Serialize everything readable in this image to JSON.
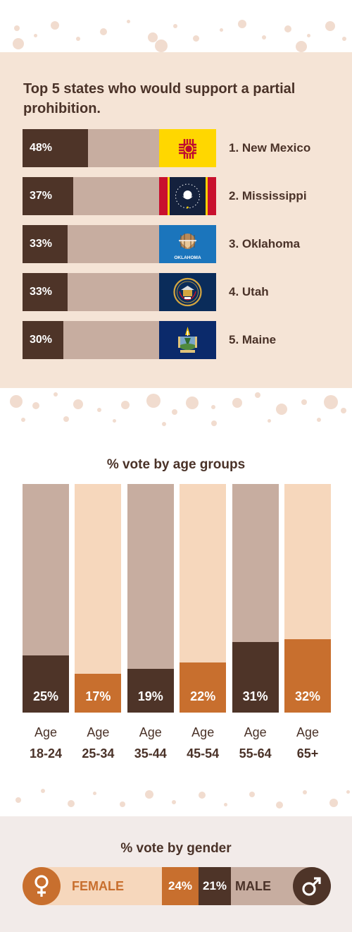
{
  "colors": {
    "dark_brown": "#4e3428",
    "light_brown": "#c7ada0",
    "orange": "#c86f2e",
    "peach": "#f6d7bc",
    "section_bg": "#f5e4d6",
    "gender_bg": "#f2ebe9",
    "text": "#4a3228"
  },
  "chart_data": [
    {
      "type": "bar",
      "orientation": "horizontal",
      "title": "Top 5 states who would support a partial prohibition.",
      "categories": [
        "1. New Mexico",
        "2. Mississippi",
        "3. Oklahoma",
        "4. Utah",
        "5. Maine"
      ],
      "values": [
        48,
        37,
        33,
        33,
        30
      ],
      "value_labels": [
        "48%",
        "37%",
        "33%",
        "33%",
        "30%"
      ],
      "flag_icons": [
        "new-mexico-flag-icon",
        "mississippi-flag-icon",
        "oklahoma-flag-icon",
        "utah-flag-icon",
        "maine-flag-icon"
      ],
      "flag_texts": [
        "",
        "",
        "OKLAHOMA",
        "",
        ""
      ],
      "xlim": [
        0,
        100
      ]
    },
    {
      "type": "bar",
      "orientation": "vertical",
      "title": "% vote by age groups",
      "category_prefix": "Age",
      "categories": [
        "18-24",
        "25-34",
        "35-44",
        "45-54",
        "55-64",
        "65+"
      ],
      "values": [
        25,
        17,
        19,
        22,
        31,
        32
      ],
      "value_labels": [
        "25%",
        "17%",
        "19%",
        "22%",
        "31%",
        "32%"
      ],
      "ylim": [
        0,
        100
      ]
    },
    {
      "type": "bar",
      "orientation": "horizontal",
      "title": "% vote by gender",
      "categories": [
        "FEMALE",
        "MALE"
      ],
      "values": [
        24,
        21
      ],
      "value_labels": [
        "24%",
        "21%"
      ],
      "icons": [
        "female-symbol-icon",
        "male-symbol-icon"
      ]
    }
  ]
}
